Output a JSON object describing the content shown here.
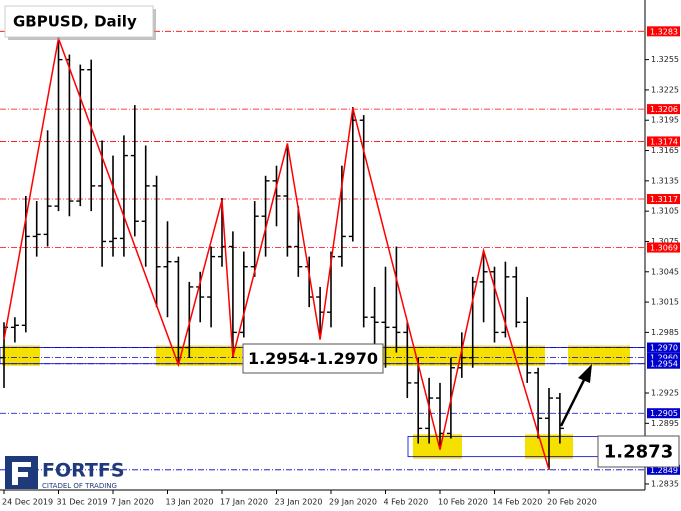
{
  "chart_data": {
    "type": "ohlc",
    "title": "GBPUSD, Daily",
    "categories": [
      "24 Dec 2019",
      null,
      null,
      null,
      null,
      "31 Dec 2019",
      null,
      null,
      null,
      null,
      "7 Jan 2020",
      null,
      null,
      null,
      null,
      "13 Jan 2020",
      null,
      null,
      null,
      null,
      "17 Jan 2020",
      null,
      null,
      null,
      null,
      "23 Jan 2020",
      null,
      null,
      null,
      null,
      "29 Jan 2020",
      null,
      null,
      null,
      null,
      "4 Feb 2020",
      null,
      null,
      null,
      null,
      "10 Feb 2020",
      null,
      null,
      null,
      null,
      "14 Feb 2020",
      null,
      null,
      null,
      null,
      "20 Feb 2020",
      null
    ],
    "ohlc": [
      [
        1.296,
        1.2995,
        1.293,
        1.299
      ],
      [
        1.299,
        1.3,
        1.2975,
        1.2992
      ],
      [
        1.2992,
        1.312,
        1.2985,
        1.308
      ],
      [
        1.308,
        1.3115,
        1.306,
        1.3082
      ],
      [
        1.3082,
        1.3185,
        1.307,
        1.311
      ],
      [
        1.311,
        1.3285,
        1.3105,
        1.3255
      ],
      [
        1.3255,
        1.326,
        1.31,
        1.3115
      ],
      [
        1.3115,
        1.325,
        1.311,
        1.3245
      ],
      [
        1.3245,
        1.3255,
        1.3105,
        1.313
      ],
      [
        1.313,
        1.3175,
        1.305,
        1.3075
      ],
      [
        1.3075,
        1.316,
        1.306,
        1.3078
      ],
      [
        1.3078,
        1.318,
        1.306,
        1.316
      ],
      [
        1.316,
        1.321,
        1.308,
        1.3095
      ],
      [
        1.3095,
        1.317,
        1.305,
        1.313
      ],
      [
        1.313,
        1.314,
        1.301,
        1.305
      ],
      [
        1.305,
        1.3095,
        1.3,
        1.3055
      ],
      [
        1.3055,
        1.306,
        1.2955,
        1.297
      ],
      [
        1.297,
        1.3035,
        1.296,
        1.303
      ],
      [
        1.303,
        1.3045,
        1.2995,
        1.302
      ],
      [
        1.302,
        1.307,
        1.299,
        1.306
      ],
      [
        1.306,
        1.3118,
        1.305,
        1.307
      ],
      [
        1.307,
        1.3085,
        1.296,
        1.2985
      ],
      [
        1.2985,
        1.3065,
        1.298,
        1.305
      ],
      [
        1.305,
        1.3115,
        1.304,
        1.31
      ],
      [
        1.31,
        1.314,
        1.306,
        1.3135
      ],
      [
        1.3135,
        1.315,
        1.309,
        1.312
      ],
      [
        1.312,
        1.3172,
        1.306,
        1.307
      ],
      [
        1.307,
        1.311,
        1.304,
        1.305
      ],
      [
        1.305,
        1.306,
        1.301,
        1.302
      ],
      [
        1.302,
        1.303,
        1.2978,
        1.3005
      ],
      [
        1.3005,
        1.3065,
        1.299,
        1.306
      ],
      [
        1.306,
        1.315,
        1.305,
        1.308
      ],
      [
        1.308,
        1.3208,
        1.3075,
        1.3195
      ],
      [
        1.3195,
        1.32,
        1.299,
        1.3
      ],
      [
        1.3,
        1.303,
        1.296,
        1.2995
      ],
      [
        1.2995,
        1.305,
        1.295,
        1.299
      ],
      [
        1.299,
        1.307,
        1.2965,
        1.2985
      ],
      [
        1.2985,
        1.2995,
        1.292,
        1.2935
      ],
      [
        1.2935,
        1.296,
        1.2875,
        1.289
      ],
      [
        1.289,
        1.294,
        1.2875,
        1.292
      ],
      [
        1.292,
        1.2935,
        1.2869,
        1.2885
      ],
      [
        1.2885,
        1.296,
        1.288,
        1.295
      ],
      [
        1.295,
        1.2985,
        1.294,
        1.296
      ],
      [
        1.296,
        1.304,
        1.295,
        1.3035
      ],
      [
        1.3035,
        1.3066,
        1.2995,
        1.3045
      ],
      [
        1.3045,
        1.305,
        1.2975,
        1.2985
      ],
      [
        1.2985,
        1.3055,
        1.298,
        1.304
      ],
      [
        1.304,
        1.305,
        1.299,
        1.2995
      ],
      [
        1.2995,
        1.302,
        1.2935,
        1.2945
      ],
      [
        1.2945,
        1.295,
        1.288,
        1.29
      ],
      [
        1.29,
        1.293,
        1.2849,
        1.292
      ],
      [
        1.292,
        1.2925,
        1.2875,
        1.289
      ]
    ],
    "bar_color": "#000000",
    "zigzag": {
      "color": "#ff0000",
      "x": [
        0,
        5,
        16,
        20,
        21,
        26,
        29,
        32,
        40,
        44,
        50
      ],
      "values": [
        1.2978,
        1.3276,
        1.2953,
        1.3116,
        1.2961,
        1.3172,
        1.2978,
        1.3207,
        1.2869,
        1.3066,
        1.2849
      ]
    },
    "resistance_levels": {
      "color": "#ff0000",
      "levels": [
        {
          "value": 1.3283,
          "label": "1.3283"
        },
        {
          "value": 1.3206,
          "label": "1.3206"
        },
        {
          "value": 1.3174,
          "label": "1.3174"
        },
        {
          "value": 1.3117,
          "label": "1.3117"
        },
        {
          "value": 1.3069,
          "label": "1.3069"
        }
      ]
    },
    "support_levels": {
      "color": "#0000cc",
      "levels": [
        {
          "value": 1.297,
          "label": "1.2970"
        },
        {
          "value": 1.296,
          "label": "1.2960"
        },
        {
          "value": 1.2954,
          "label": "1.2954"
        },
        {
          "value": 1.2905,
          "label": "1.2905"
        },
        {
          "value": 1.2849,
          "label": "1.2849"
        }
      ]
    },
    "zones": [
      {
        "label": "1.2954-1.2970",
        "low": 1.2954,
        "high": 1.297
      },
      {
        "label": "1.2873",
        "low": 1.2862,
        "high": 1.2882
      }
    ],
    "zone_color": "#f5e000",
    "ylim": [
      1.2829,
      1.3314
    ],
    "yticks": [
      1.3255,
      1.3225,
      1.3195,
      1.3165,
      1.3135,
      1.3105,
      1.3075,
      1.3045,
      1.3015,
      1.2985,
      1.2925,
      1.2895,
      1.2835
    ]
  },
  "logo": {
    "name": "FORTFS",
    "tagline": "CITADEL OF TRADING"
  }
}
